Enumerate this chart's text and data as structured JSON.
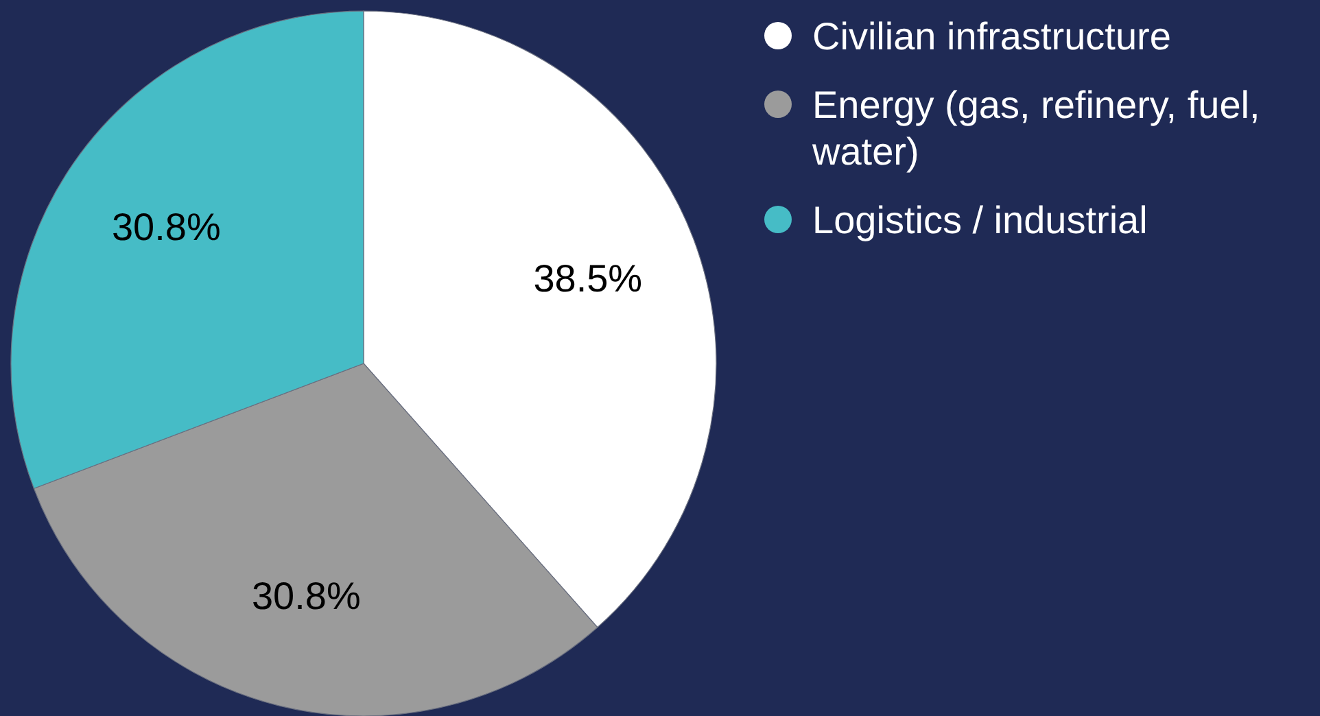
{
  "chart_data": {
    "type": "pie",
    "categories": [
      "Civilian infrastructure",
      "Energy (gas, refinery, fuel, water)",
      "Logistics / industrial"
    ],
    "values": [
      38.5,
      30.8,
      30.8
    ],
    "colors": [
      "#ffffff",
      "#9b9b9b",
      "#46bcc6"
    ],
    "value_labels": [
      "38.5%",
      "30.8%",
      "30.8%"
    ],
    "legend": "right"
  }
}
